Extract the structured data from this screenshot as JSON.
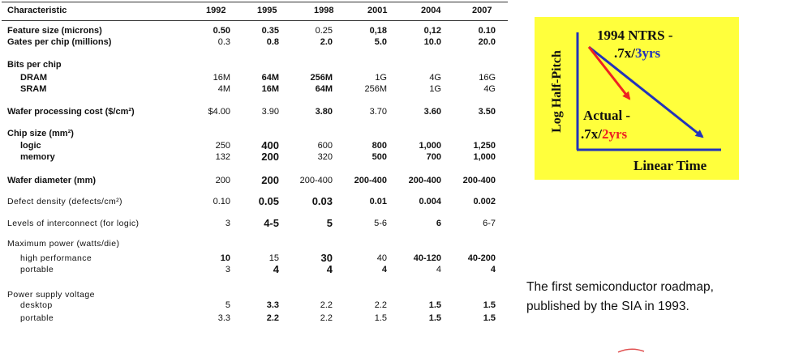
{
  "table": {
    "header_label": "Characteristic",
    "years": [
      "1992",
      "1995",
      "1998",
      "2001",
      "2004",
      "2007"
    ],
    "rows": [
      {
        "label": "Feature size (microns)",
        "values": [
          "0.50",
          "0.35",
          "0.25",
          "0,18",
          "0,12",
          "0.10"
        ]
      },
      {
        "label": "Gates per chip (millions)",
        "values": [
          "0.3",
          "0.8",
          "2.0",
          "5.0",
          "10.0",
          "20.0"
        ]
      },
      {
        "label": "Bits per chip",
        "values": [
          "",
          "",
          "",
          "",
          "",
          ""
        ]
      },
      {
        "label": "DRAM",
        "values": [
          "16M",
          "64M",
          "256M",
          "1G",
          "4G",
          "16G"
        ]
      },
      {
        "label": "SRAM",
        "values": [
          "4M",
          "16M",
          "64M",
          "256M",
          "1G",
          "4G"
        ]
      },
      {
        "label": "Wafer processing cost ($/cm²)",
        "values": [
          "$4.00",
          "3.90",
          "3.80",
          "3.70",
          "3.60",
          "3.50"
        ]
      },
      {
        "label": "Chip size (mm²)",
        "values": [
          "",
          "",
          "",
          "",
          "",
          ""
        ]
      },
      {
        "label": "logic",
        "values": [
          "250",
          "400",
          "600",
          "800",
          "1,000",
          "1,250"
        ]
      },
      {
        "label": "memory",
        "values": [
          "132",
          "200",
          "320",
          "500",
          "700",
          "1,000"
        ]
      },
      {
        "label": "Wafer diameter (mm)",
        "values": [
          "200",
          "200",
          "200-400",
          "200-400",
          "200-400",
          "200-400"
        ]
      },
      {
        "label": "Defect density (defects/cm²)",
        "values": [
          "0.10",
          "0.05",
          "0.03",
          "0.01",
          "0.004",
          "0.002"
        ]
      },
      {
        "label": "Levels of interconnect (for logic)",
        "values": [
          "3",
          "4-5",
          "5",
          "5-6",
          "6",
          "6-7"
        ]
      },
      {
        "label": "Maximum power (watts/die)",
        "values": [
          "",
          "",
          "",
          "",
          "",
          ""
        ]
      },
      {
        "label": "high performance",
        "values": [
          "10",
          "15",
          "30",
          "40",
          "40-120",
          "40-200"
        ]
      },
      {
        "label": "portable",
        "values": [
          "3",
          "4",
          "4",
          "4",
          "4",
          "4"
        ]
      },
      {
        "label": "Power supply voltage",
        "values": [
          "",
          "",
          "",
          "",
          "",
          ""
        ]
      },
      {
        "label": "desktop",
        "values": [
          "5",
          "3.3",
          "2.2",
          "2.2",
          "1.5",
          "1.5"
        ]
      },
      {
        "label": "portable",
        "values": [
          "3.3",
          "2.2",
          "2.2",
          "1.5",
          "1.5",
          "1.5"
        ]
      }
    ]
  },
  "graphic": {
    "y_axis_label": "Log Half-Pitch",
    "x_axis_label": "Linear Time",
    "ntrs_title": "1994 NTRS -",
    "ntrs_rate_prefix": ".7x/",
    "ntrs_rate_suffix": "3yrs",
    "actual_title": "Actual -",
    "actual_rate_prefix": ".7x/",
    "actual_rate_suffix": "2yrs",
    "background_color": "#ffff3c",
    "ntrs_color": "#2233bb",
    "actual_color": "#ee2222"
  },
  "caption": {
    "line1": "The first semiconductor roadmap,",
    "line2": "published by the SIA in 1993."
  }
}
